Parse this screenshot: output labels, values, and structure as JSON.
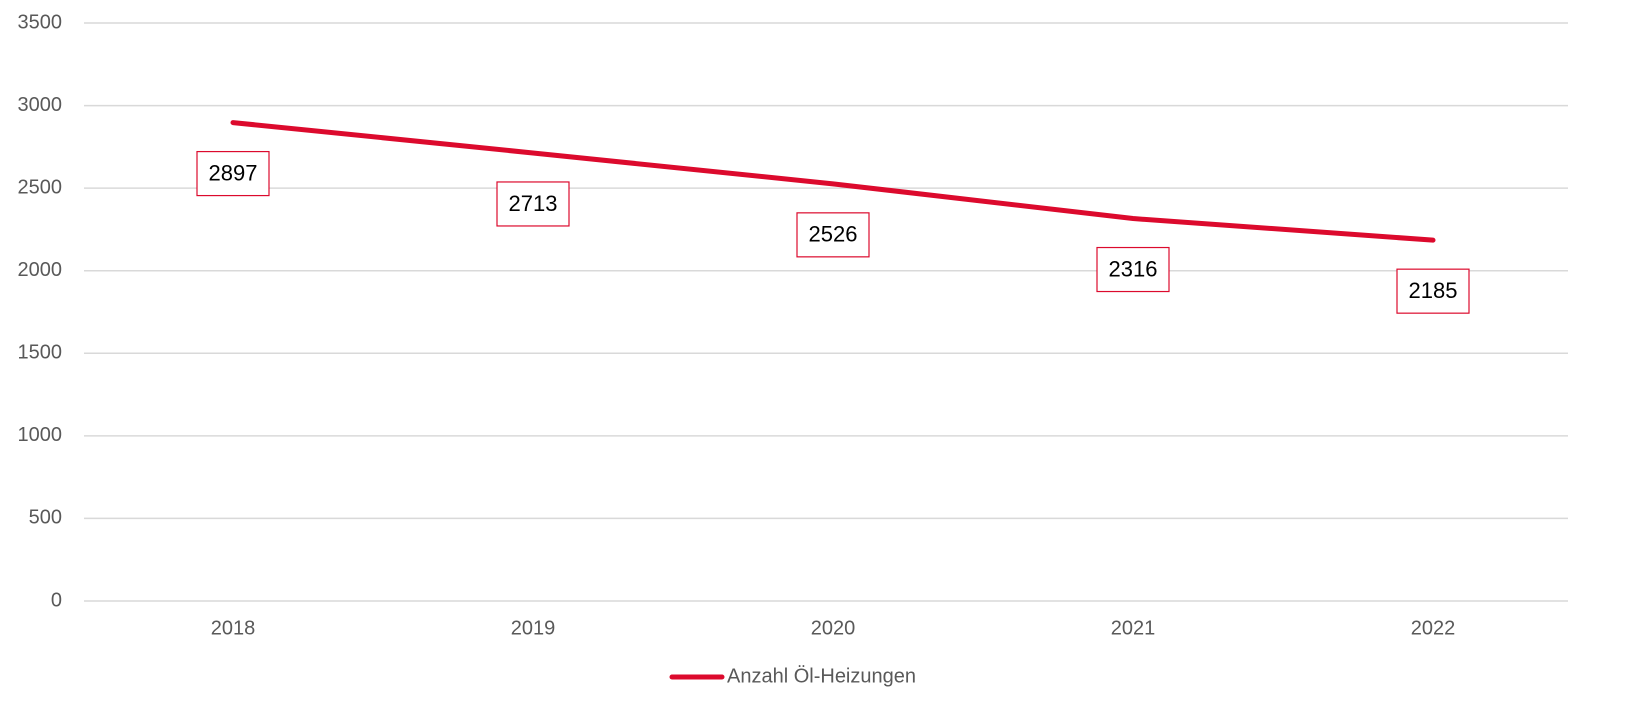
{
  "chart_data": {
    "type": "line",
    "categories": [
      "2018",
      "2019",
      "2020",
      "2021",
      "2022"
    ],
    "series": [
      {
        "name": "Anzahl Öl-Heizungen",
        "color": "#dc0a2d",
        "values": [
          2897,
          2713,
          2526,
          2316,
          2185
        ]
      }
    ],
    "ylim": [
      0,
      3500
    ],
    "yticks": [
      0,
      500,
      1000,
      1500,
      2000,
      2500,
      3000,
      3500
    ],
    "grid": true,
    "legend": "bottom"
  }
}
